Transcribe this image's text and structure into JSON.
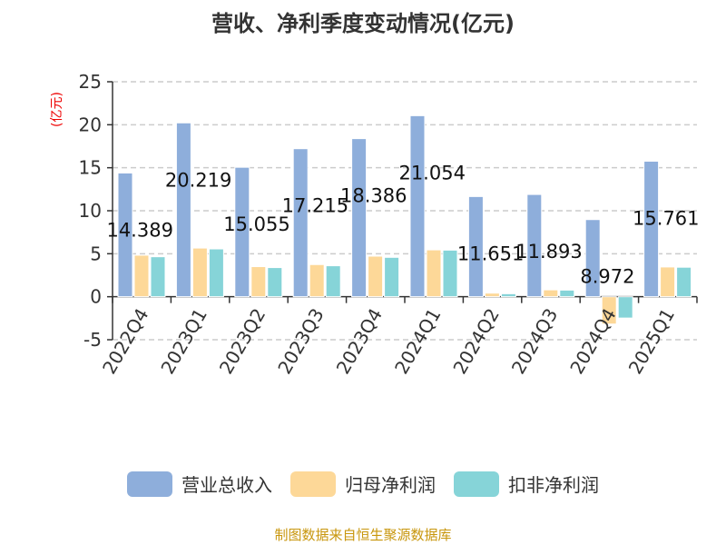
{
  "title": "营收、净利季度变动情况(亿元)",
  "unit_label": "(亿元)",
  "source": "制图数据来自恒生聚源数据库",
  "chart_data": {
    "type": "bar",
    "title": "营收、净利季度变动情况(亿元)",
    "ylabel": "(亿元)",
    "ylim": [
      -5,
      25
    ],
    "yticks": [
      -5,
      0,
      5,
      10,
      15,
      20,
      25
    ],
    "grid": true,
    "legend_position": "bottom",
    "categories": [
      "2022Q4",
      "2023Q1",
      "2023Q2",
      "2023Q3",
      "2023Q4",
      "2024Q1",
      "2024Q2",
      "2024Q3",
      "2024Q4",
      "2025Q1"
    ],
    "series": [
      {
        "name": "营业总收入",
        "color": "#8eaedb",
        "values": [
          14.389,
          20.219,
          15.055,
          17.215,
          18.386,
          21.054,
          11.651,
          11.893,
          8.972,
          15.761
        ],
        "labels": [
          "14.389",
          "20.219",
          "15.055",
          "17.215",
          "18.386",
          "21.054",
          "11.651",
          "11.893",
          "8.972",
          "15.761"
        ]
      },
      {
        "name": "归母净利润",
        "color": "#fdd898",
        "values": [
          4.83,
          5.66,
          3.5,
          3.74,
          4.72,
          5.45,
          0.42,
          0.8,
          -3.18,
          3.46
        ]
      },
      {
        "name": "扣非净利润",
        "color": "#86d4d8",
        "values": [
          4.65,
          5.56,
          3.39,
          3.6,
          4.58,
          5.42,
          0.35,
          0.77,
          -2.48,
          3.43
        ]
      }
    ]
  }
}
